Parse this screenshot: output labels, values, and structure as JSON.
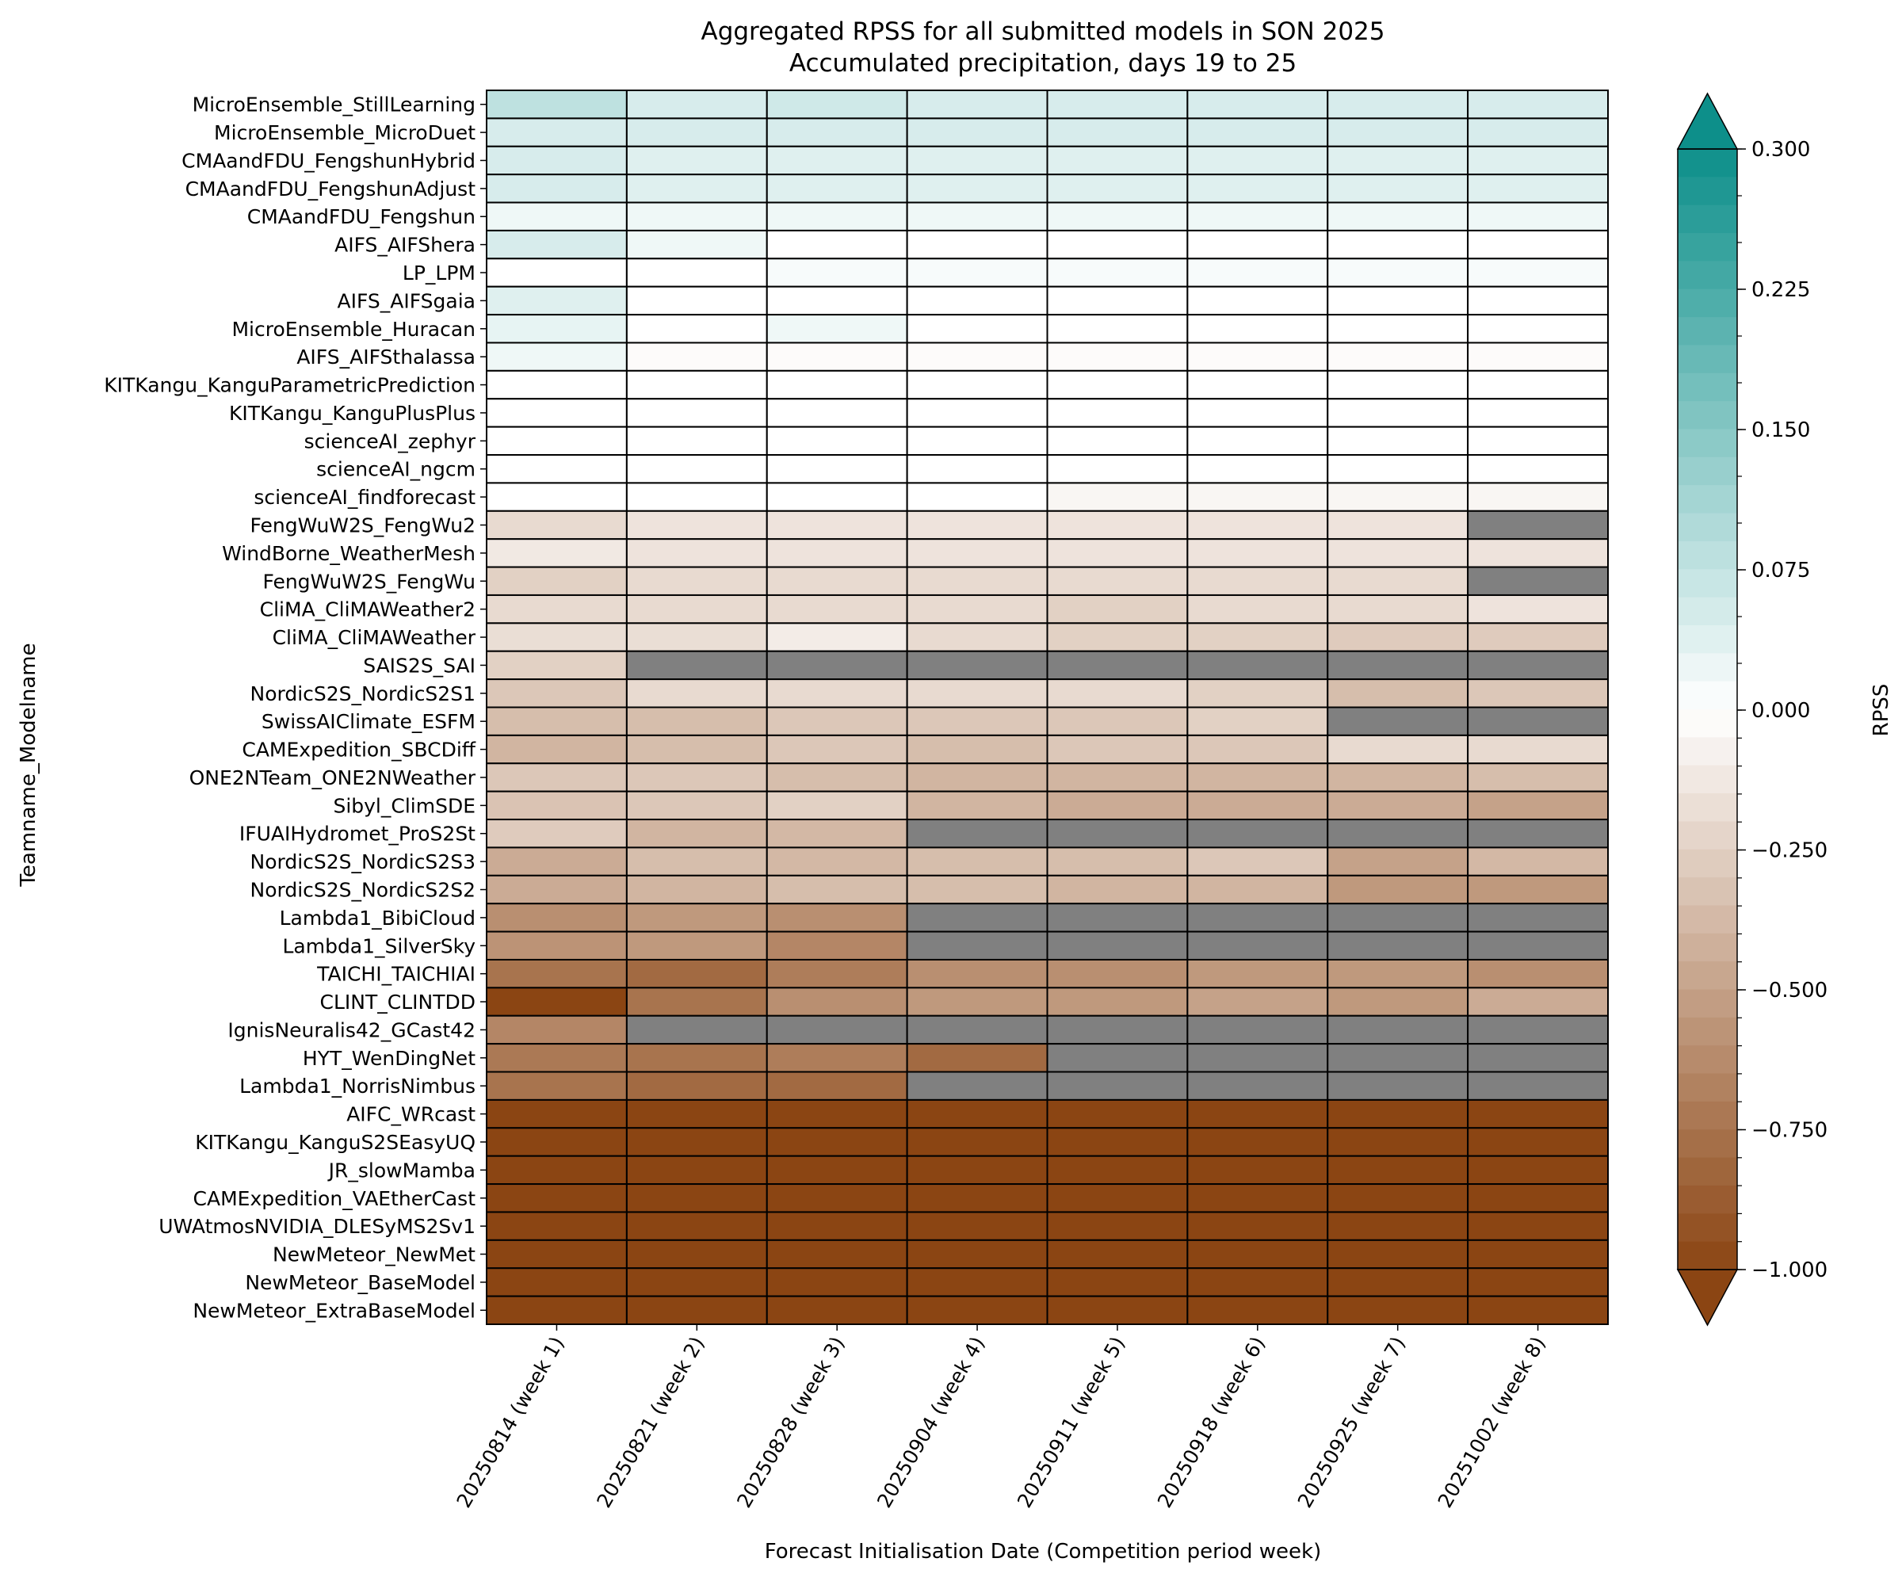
{
  "chart_data": {
    "type": "heatmap",
    "title": "Aggregated RPSS for all submitted models in SON 2025",
    "subtitle": "Accumulated precipitation, days 19 to 25",
    "xlabel": "Forecast Initialisation Date (Competition period week)",
    "ylabel": "Teamname_Modelname",
    "colorbar_label": "RPSS",
    "colorbar_ticks": [
      "0.300",
      "0.225",
      "0.150",
      "0.075",
      "0.000",
      "−0.250",
      "−0.500",
      "−0.750",
      "−1.000"
    ],
    "colorbar_tick_values": [
      0.3,
      0.225,
      0.15,
      0.075,
      0.0,
      -0.25,
      -0.5,
      -0.75,
      -1.0
    ],
    "vmin": -1.0,
    "vmax": 0.3,
    "colorbar_extend": "both",
    "missing_color": "#808080",
    "colors": {
      "positive": "#0d8f8a",
      "negative": "#8b4513",
      "zero": "#ffffff"
    },
    "columns": [
      "20250814 (week 1)",
      "20250821 (week 2)",
      "20250828 (week 3)",
      "20250904 (week 4)",
      "20250911 (week 5)",
      "20250918 (week 6)",
      "20250925 (week 7)",
      "20251002 (week 8)"
    ],
    "rows": [
      "MicroEnsemble_StillLearning",
      "MicroEnsemble_MicroDuet",
      "CMAandFDU_FengshunHybrid",
      "CMAandFDU_FengshunAdjust",
      "CMAandFDU_Fengshun",
      "AIFS_AIFShera",
      "LP_LPM",
      "AIFS_AIFSgaia",
      "MicroEnsemble_Huracan",
      "AIFS_AIFSthalassa",
      "KITKangu_KanguParametricPrediction",
      "KITKangu_KanguPlusPlus",
      "scienceAI_zephyr",
      "scienceAI_ngcm",
      "scienceAI_findforecast",
      "FengWuW2S_FengWu2",
      "WindBorne_WeatherMesh",
      "FengWuW2S_FengWu",
      "CliMA_CliMAWeather2",
      "CliMA_CliMAWeather",
      "SAIS2S_SAI",
      "NordicS2S_NordicS2S1",
      "SwissAIClimate_ESFM",
      "CAMExpedition_SBCDiff",
      "ONE2NTeam_ONE2NWeather",
      "Sibyl_ClimSDE",
      "IFUAIHydromet_ProS2St",
      "NordicS2S_NordicS2S3",
      "NordicS2S_NordicS2S2",
      "Lambda1_BibiCloud",
      "Lambda1_SilverSky",
      "TAICHI_TAICHIAI",
      "CLINT_CLINTDD",
      "IgnisNeuralis42_GCast42",
      "HYT_WenDingNet",
      "Lambda1_NorrisNimbus",
      "AIFC_WRcast",
      "KITKangu_KanguS2SEasyUQ",
      "JR_slowMamba",
      "CAMExpedition_VAEtherCast",
      "UWAtmosNVIDIA_DLESyMS2Sv1",
      "NewMeteor_NewMet",
      "NewMeteor_BaseModel",
      "NewMeteor_ExtraBaseModel"
    ],
    "values": [
      [
        0.08,
        0.05,
        0.06,
        0.05,
        0.05,
        0.05,
        0.05,
        0.05
      ],
      [
        0.05,
        0.05,
        0.05,
        0.05,
        0.05,
        0.05,
        0.05,
        0.05
      ],
      [
        0.05,
        0.04,
        0.04,
        0.04,
        0.04,
        0.04,
        0.04,
        0.04
      ],
      [
        0.05,
        0.04,
        0.04,
        0.04,
        0.04,
        0.04,
        0.04,
        0.04
      ],
      [
        0.02,
        0.02,
        0.02,
        0.02,
        0.02,
        0.02,
        0.02,
        0.02
      ],
      [
        0.05,
        0.02,
        0.0,
        0.0,
        0.0,
        0.0,
        0.0,
        0.0
      ],
      [
        0.0,
        0.0,
        0.01,
        0.01,
        0.01,
        0.01,
        0.01,
        0.01
      ],
      [
        0.04,
        0.0,
        0.0,
        0.0,
        0.0,
        0.0,
        0.0,
        0.0
      ],
      [
        0.03,
        0.0,
        0.02,
        0.0,
        0.0,
        0.0,
        0.0,
        0.0
      ],
      [
        0.02,
        -0.02,
        -0.02,
        -0.02,
        -0.02,
        -0.02,
        -0.02,
        -0.02
      ],
      [
        0.0,
        0.0,
        0.0,
        0.0,
        0.0,
        0.0,
        0.0,
        0.0
      ],
      [
        0.0,
        0.0,
        0.0,
        0.0,
        0.0,
        0.0,
        0.0,
        0.0
      ],
      [
        0.0,
        0.0,
        0.0,
        0.0,
        0.0,
        0.0,
        0.0,
        0.0
      ],
      [
        0.0,
        0.0,
        0.0,
        0.0,
        0.0,
        0.0,
        0.0,
        0.0
      ],
      [
        0.0,
        0.0,
        0.0,
        0.0,
        -0.05,
        -0.05,
        -0.05,
        -0.05
      ],
      [
        -0.2,
        -0.15,
        -0.15,
        -0.15,
        -0.15,
        -0.15,
        -0.15,
        null
      ],
      [
        -0.12,
        -0.15,
        -0.15,
        -0.15,
        -0.15,
        -0.15,
        -0.15,
        -0.15
      ],
      [
        -0.25,
        -0.2,
        -0.2,
        -0.2,
        -0.2,
        -0.2,
        -0.2,
        null
      ],
      [
        -0.2,
        -0.2,
        -0.2,
        -0.2,
        -0.25,
        -0.2,
        -0.2,
        -0.15
      ],
      [
        -0.18,
        -0.18,
        -0.1,
        -0.2,
        -0.25,
        -0.25,
        -0.28,
        -0.28
      ],
      [
        -0.25,
        null,
        null,
        null,
        null,
        null,
        null,
        null
      ],
      [
        -0.3,
        -0.2,
        -0.2,
        -0.2,
        -0.2,
        -0.25,
        -0.35,
        -0.3
      ],
      [
        -0.35,
        -0.35,
        -0.3,
        -0.3,
        -0.3,
        -0.25,
        null,
        null
      ],
      [
        -0.4,
        -0.35,
        -0.3,
        -0.35,
        -0.3,
        -0.3,
        -0.2,
        -0.2
      ],
      [
        -0.3,
        -0.3,
        -0.35,
        -0.4,
        -0.4,
        -0.4,
        -0.4,
        -0.35
      ],
      [
        -0.32,
        -0.3,
        -0.25,
        -0.4,
        -0.45,
        -0.45,
        -0.45,
        -0.5
      ],
      [
        -0.28,
        -0.4,
        -0.38,
        null,
        null,
        null,
        null,
        null
      ],
      [
        -0.45,
        -0.35,
        -0.38,
        -0.35,
        -0.35,
        -0.3,
        -0.5,
        -0.38
      ],
      [
        -0.45,
        -0.4,
        -0.35,
        -0.35,
        -0.4,
        -0.4,
        -0.55,
        -0.55
      ],
      [
        -0.6,
        -0.55,
        -0.6,
        null,
        null,
        null,
        null,
        null
      ],
      [
        -0.58,
        -0.55,
        -0.65,
        null,
        null,
        null,
        null,
        null
      ],
      [
        -0.75,
        -0.8,
        -0.7,
        -0.6,
        -0.6,
        -0.55,
        -0.55,
        -0.6
      ],
      [
        -1.0,
        -0.75,
        -0.6,
        -0.55,
        -0.55,
        -0.5,
        -0.55,
        -0.45
      ],
      [
        -0.65,
        null,
        null,
        null,
        null,
        null,
        null,
        null
      ],
      [
        -0.72,
        -0.75,
        -0.7,
        -0.8,
        null,
        null,
        null,
        null
      ],
      [
        -0.75,
        -0.8,
        -0.8,
        null,
        null,
        null,
        null,
        null
      ],
      [
        -1.0,
        -1.0,
        -1.0,
        -1.0,
        -1.0,
        -1.0,
        -1.0,
        -1.0
      ],
      [
        -1.0,
        -1.0,
        -1.0,
        -1.0,
        -1.0,
        -1.0,
        -1.0,
        -1.0
      ],
      [
        -1.0,
        -1.0,
        -1.0,
        -1.0,
        -1.0,
        -1.0,
        -1.0,
        -1.0
      ],
      [
        -1.0,
        -1.0,
        -1.0,
        -1.0,
        -1.0,
        -1.0,
        -1.0,
        -1.0
      ],
      [
        -1.0,
        -1.0,
        -1.0,
        -1.0,
        -1.0,
        -1.0,
        -1.0,
        -1.0
      ],
      [
        -1.0,
        -1.0,
        -1.0,
        -1.0,
        -1.0,
        -1.0,
        -1.0,
        -1.0
      ],
      [
        -1.0,
        -1.0,
        -1.0,
        -1.0,
        -1.0,
        -1.0,
        -1.0,
        -1.0
      ],
      [
        -1.0,
        -1.0,
        -1.0,
        -1.0,
        -1.0,
        -1.0,
        -1.0,
        -1.0
      ]
    ]
  }
}
